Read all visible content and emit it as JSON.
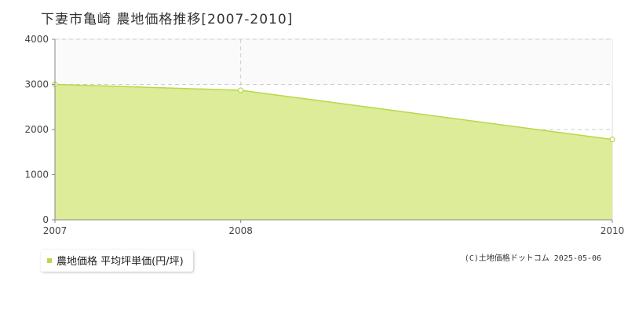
{
  "title": "下妻市亀崎 農地価格推移[2007-2010]",
  "legend": {
    "label": "農地価格 平均坪単価(円/坪)"
  },
  "copyright": "(C)土地価格ドットコム 2025-05-06",
  "colors": {
    "fill": "#dcec98",
    "line": "#b8d84a",
    "marker_fill": "#ffffff",
    "grid": "#cccccc",
    "axis": "#888888",
    "plot_bg_upper": "#fafafa"
  },
  "chart_data": {
    "type": "area",
    "title": "下妻市亀崎 農地価格推移[2007-2010]",
    "xlabel": "",
    "ylabel": "",
    "x": [
      2007,
      2008,
      2010
    ],
    "series": [
      {
        "name": "農地価格 平均坪単価(円/坪)",
        "values": [
          3000,
          2870,
          1780
        ]
      }
    ],
    "x_ticks": [
      "2007",
      "2008",
      "2010"
    ],
    "y_ticks": [
      "0",
      "1000",
      "2000",
      "3000",
      "4000"
    ],
    "ylim": [
      0,
      4000
    ],
    "xlim": [
      2007,
      2010
    ],
    "grid": true,
    "legend_position": "bottom-left"
  }
}
